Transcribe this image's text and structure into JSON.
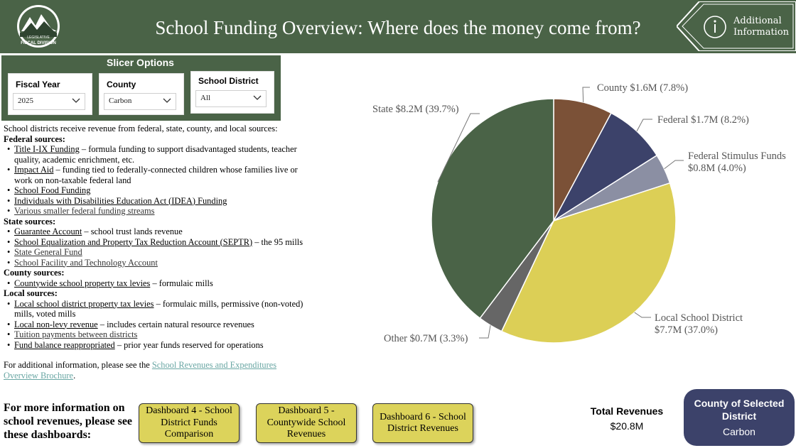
{
  "header": {
    "logo_text_top": "LEGISLATIVE",
    "logo_text_bottom": "FISCAL DIVISION",
    "title": "School Funding Overview: Where does the money come from?",
    "additional_line1": "Additional",
    "additional_line2": "Information",
    "info_icon": "info-icon"
  },
  "slicer": {
    "title": "Slicer Options",
    "fiscal_year": {
      "label": "Fiscal Year",
      "value": "2025"
    },
    "county": {
      "label": "County",
      "value": "Carbon"
    },
    "district": {
      "label": "School District",
      "value": "All"
    }
  },
  "intro": "School districts receive revenue from federal, state, county, and local sources:",
  "sections": {
    "federal": {
      "heading": "Federal sources:",
      "items": [
        {
          "link": "Title I-IX Funding",
          "desc": " – formula funding to support disadvantaged students, teacher quality, academic enrichment, etc."
        },
        {
          "link": "Impact Aid",
          "desc": " – funding tied to federally-connected children whose families live or work on non-taxable federal land"
        },
        {
          "link": "School Food Funding",
          "desc": ""
        },
        {
          "link": "Individuals with Disabilities Education Act (IDEA) Funding",
          "desc": ""
        },
        {
          "link": "Various smaller federal funding streams",
          "desc": ""
        }
      ]
    },
    "state": {
      "heading": "State sources:",
      "items": [
        {
          "link": "Guarantee Account",
          "desc": " – school trust lands revenue"
        },
        {
          "link": "School Equalization and Property Tax Reduction Account (SEPTR)",
          "desc": " – the 95 mills"
        },
        {
          "link": "State General Fund",
          "desc": ""
        },
        {
          "link": "School Facility and Technology Account",
          "desc": ""
        }
      ]
    },
    "county": {
      "heading": "County sources:",
      "items": [
        {
          "link": "Countywide school property tax levies",
          "desc": " – formulaic mills"
        }
      ]
    },
    "local": {
      "heading": "Local sources:",
      "items": [
        {
          "link": "Local school district property tax levies",
          "desc": " – formulaic mills, permissive (non-voted) mills, voted mills"
        },
        {
          "link": "Local non-levy revenue",
          "desc": " – includes certain natural resource revenues"
        },
        {
          "link": "Tuition payments between districts",
          "desc": ""
        },
        {
          "link": "Fund balance reappropriated",
          "desc": " – prior year funds reserved for operations"
        }
      ]
    }
  },
  "additional": {
    "prefix": "For additional information, please see the ",
    "link": "School Revenues and Expenditures Overview Brochure",
    "suffix": "."
  },
  "more_info": "For more information on school revenues, please see these dashboards:",
  "dashboards": [
    "Dashboard 4 - School District Funds Comparison",
    "Dashboard 5 - Countywide School Revenues",
    "Dashboard 6 - School District Revenues"
  ],
  "totals": {
    "label": "Total Revenues",
    "value": "$20.8M"
  },
  "county_card": {
    "title": "County of Selected District",
    "value": "Carbon"
  },
  "chart_data": {
    "type": "pie",
    "unit": "$M",
    "slices": [
      {
        "name": "County",
        "value": 1.6,
        "percent": 7.8,
        "color": "#7b5137",
        "label": "County $1.6M (7.8%)"
      },
      {
        "name": "Federal",
        "value": 1.7,
        "percent": 8.2,
        "color": "#3c426a",
        "label": "Federal $1.7M (8.2%)"
      },
      {
        "name": "Federal Stimulus Funds",
        "value": 0.8,
        "percent": 4.0,
        "color": "#8b8fa3",
        "label": "Federal Stimulus Funds",
        "label2": "$0.8M (4.0%)"
      },
      {
        "name": "Local School District",
        "value": 7.7,
        "percent": 37.0,
        "color": "#dccf56",
        "label": "Local School District",
        "label2": "$7.7M (37.0%)"
      },
      {
        "name": "Other",
        "value": 0.7,
        "percent": 3.3,
        "color": "#666666",
        "label": "Other $0.7M (3.3%)"
      },
      {
        "name": "State",
        "value": 8.2,
        "percent": 39.7,
        "color": "#4a6347",
        "label": "State $8.2M (39.7%)"
      }
    ]
  }
}
